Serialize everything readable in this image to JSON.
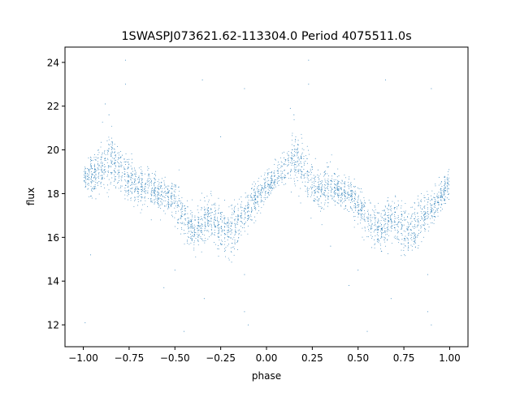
{
  "chart_data": {
    "type": "scatter",
    "title": "1SWASPJ073621.62-113304.0 Period 4075511.0s",
    "xlabel": "phase",
    "ylabel": "flux",
    "xlim": [
      -1.1,
      1.1
    ],
    "ylim": [
      11.0,
      24.7
    ],
    "xticks": [
      -1.0,
      -0.75,
      -0.5,
      -0.25,
      0.0,
      0.25,
      0.5,
      0.75,
      1.0
    ],
    "xtick_labels": [
      "−1.00",
      "−0.75",
      "−0.50",
      "−0.25",
      "0.00",
      "0.25",
      "0.50",
      "0.75",
      "1.00"
    ],
    "yticks": [
      12,
      14,
      16,
      18,
      20,
      22,
      24
    ],
    "ytick_labels": [
      "12",
      "14",
      "16",
      "18",
      "20",
      "22",
      "24"
    ],
    "grid": false,
    "marker_color": "#1f77b4",
    "series": [
      {
        "phase": [
          -1.0,
          -0.95,
          -0.9,
          -0.85,
          -0.8,
          -0.75,
          -0.7,
          -0.65,
          -0.6,
          -0.55,
          -0.5,
          -0.45,
          -0.4,
          -0.35,
          -0.3,
          -0.25,
          -0.2,
          -0.15,
          -0.1,
          -0.05,
          0.0,
          0.05,
          0.1,
          0.15,
          0.2,
          0.25,
          0.3,
          0.35,
          0.4,
          0.45,
          0.5,
          0.55,
          0.6,
          0.65,
          0.7,
          0.75,
          0.8,
          0.85,
          0.9,
          0.95,
          1.0
        ],
        "flux": [
          18.6,
          18.9,
          19.2,
          19.6,
          19.2,
          18.6,
          18.3,
          18.4,
          18.1,
          18.0,
          17.6,
          16.9,
          16.3,
          16.6,
          17.0,
          16.4,
          16.3,
          16.8,
          17.3,
          17.8,
          18.3,
          18.8,
          19.1,
          19.5,
          19.1,
          18.5,
          18.2,
          18.4,
          18.1,
          18.0,
          17.6,
          16.8,
          16.3,
          16.6,
          16.9,
          16.3,
          16.4,
          16.9,
          17.4,
          17.9,
          18.5
        ],
        "spread": [
          0.6,
          0.9,
          0.9,
          1.3,
          1.0,
          1.0,
          0.9,
          0.9,
          0.7,
          0.8,
          0.9,
          0.9,
          0.9,
          0.9,
          0.9,
          1.1,
          1.1,
          0.9,
          0.8,
          0.7,
          0.7,
          0.7,
          0.8,
          1.3,
          1.0,
          1.0,
          0.9,
          0.9,
          0.7,
          0.8,
          0.9,
          0.9,
          0.9,
          0.9,
          0.9,
          1.1,
          1.1,
          0.9,
          0.8,
          0.7,
          0.6
        ]
      }
    ],
    "outliers": [
      [
        -0.96,
        15.2
      ],
      [
        -0.88,
        22.1
      ],
      [
        -0.86,
        21.6
      ],
      [
        -0.77,
        24.1
      ],
      [
        -0.77,
        23.0
      ],
      [
        -0.56,
        13.7
      ],
      [
        -0.5,
        14.5
      ],
      [
        -0.45,
        11.7
      ],
      [
        -0.35,
        23.2
      ],
      [
        -0.34,
        13.2
      ],
      [
        -0.25,
        20.6
      ],
      [
        -0.12,
        22.8
      ],
      [
        -0.12,
        14.3
      ],
      [
        -0.12,
        12.6
      ],
      [
        -0.1,
        12.0
      ],
      [
        0.13,
        21.9
      ],
      [
        0.15,
        21.6
      ],
      [
        0.23,
        24.1
      ],
      [
        0.23,
        23.0
      ],
      [
        0.45,
        13.8
      ],
      [
        0.5,
        14.5
      ],
      [
        0.55,
        11.7
      ],
      [
        0.65,
        23.2
      ],
      [
        0.68,
        13.2
      ],
      [
        0.88,
        14.3
      ],
      [
        0.88,
        12.6
      ],
      [
        0.9,
        12.0
      ],
      [
        0.9,
        22.8
      ],
      [
        -0.99,
        12.1
      ],
      [
        0.35,
        15.6
      ]
    ]
  }
}
